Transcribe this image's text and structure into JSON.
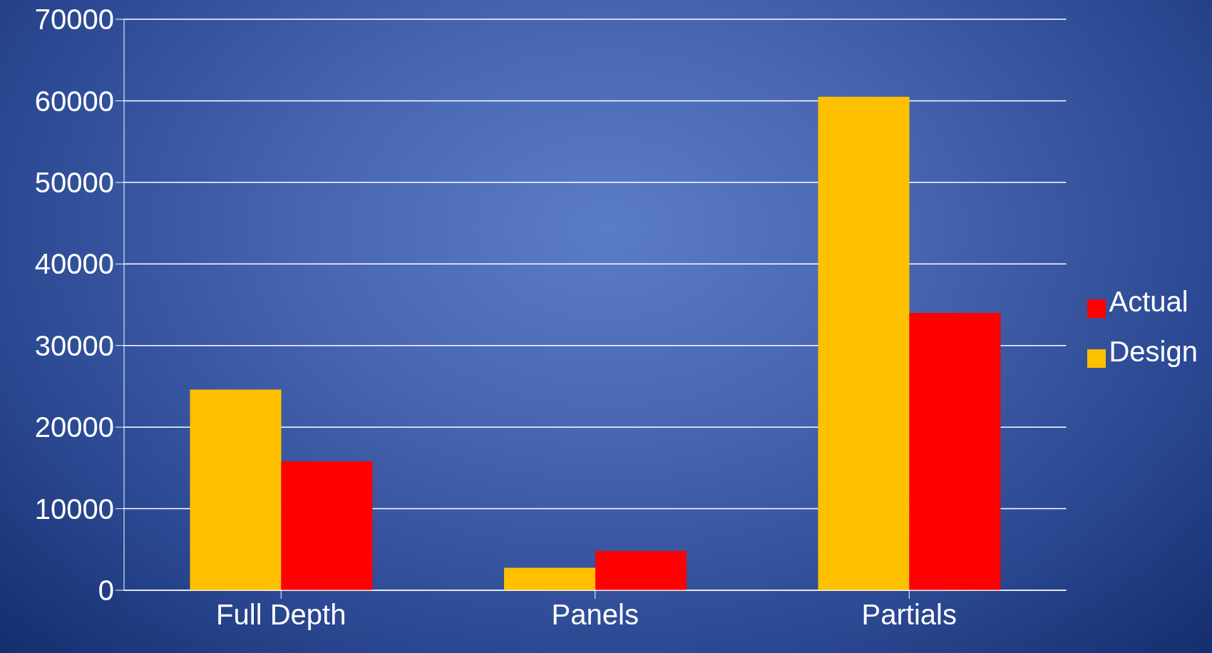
{
  "chart_data": {
    "type": "bar",
    "categories": [
      "Full Depth",
      "Panels",
      "Partials"
    ],
    "series": [
      {
        "name": "Design",
        "color": "#ffc000",
        "values": [
          24600,
          2750,
          60500
        ]
      },
      {
        "name": "Actual",
        "color": "#ff0000",
        "values": [
          15800,
          4800,
          34000
        ]
      }
    ],
    "ylim": [
      0,
      70000
    ],
    "yticks": [
      0,
      10000,
      20000,
      30000,
      40000,
      50000,
      60000,
      70000
    ],
    "grid": "y",
    "legend": "right"
  }
}
